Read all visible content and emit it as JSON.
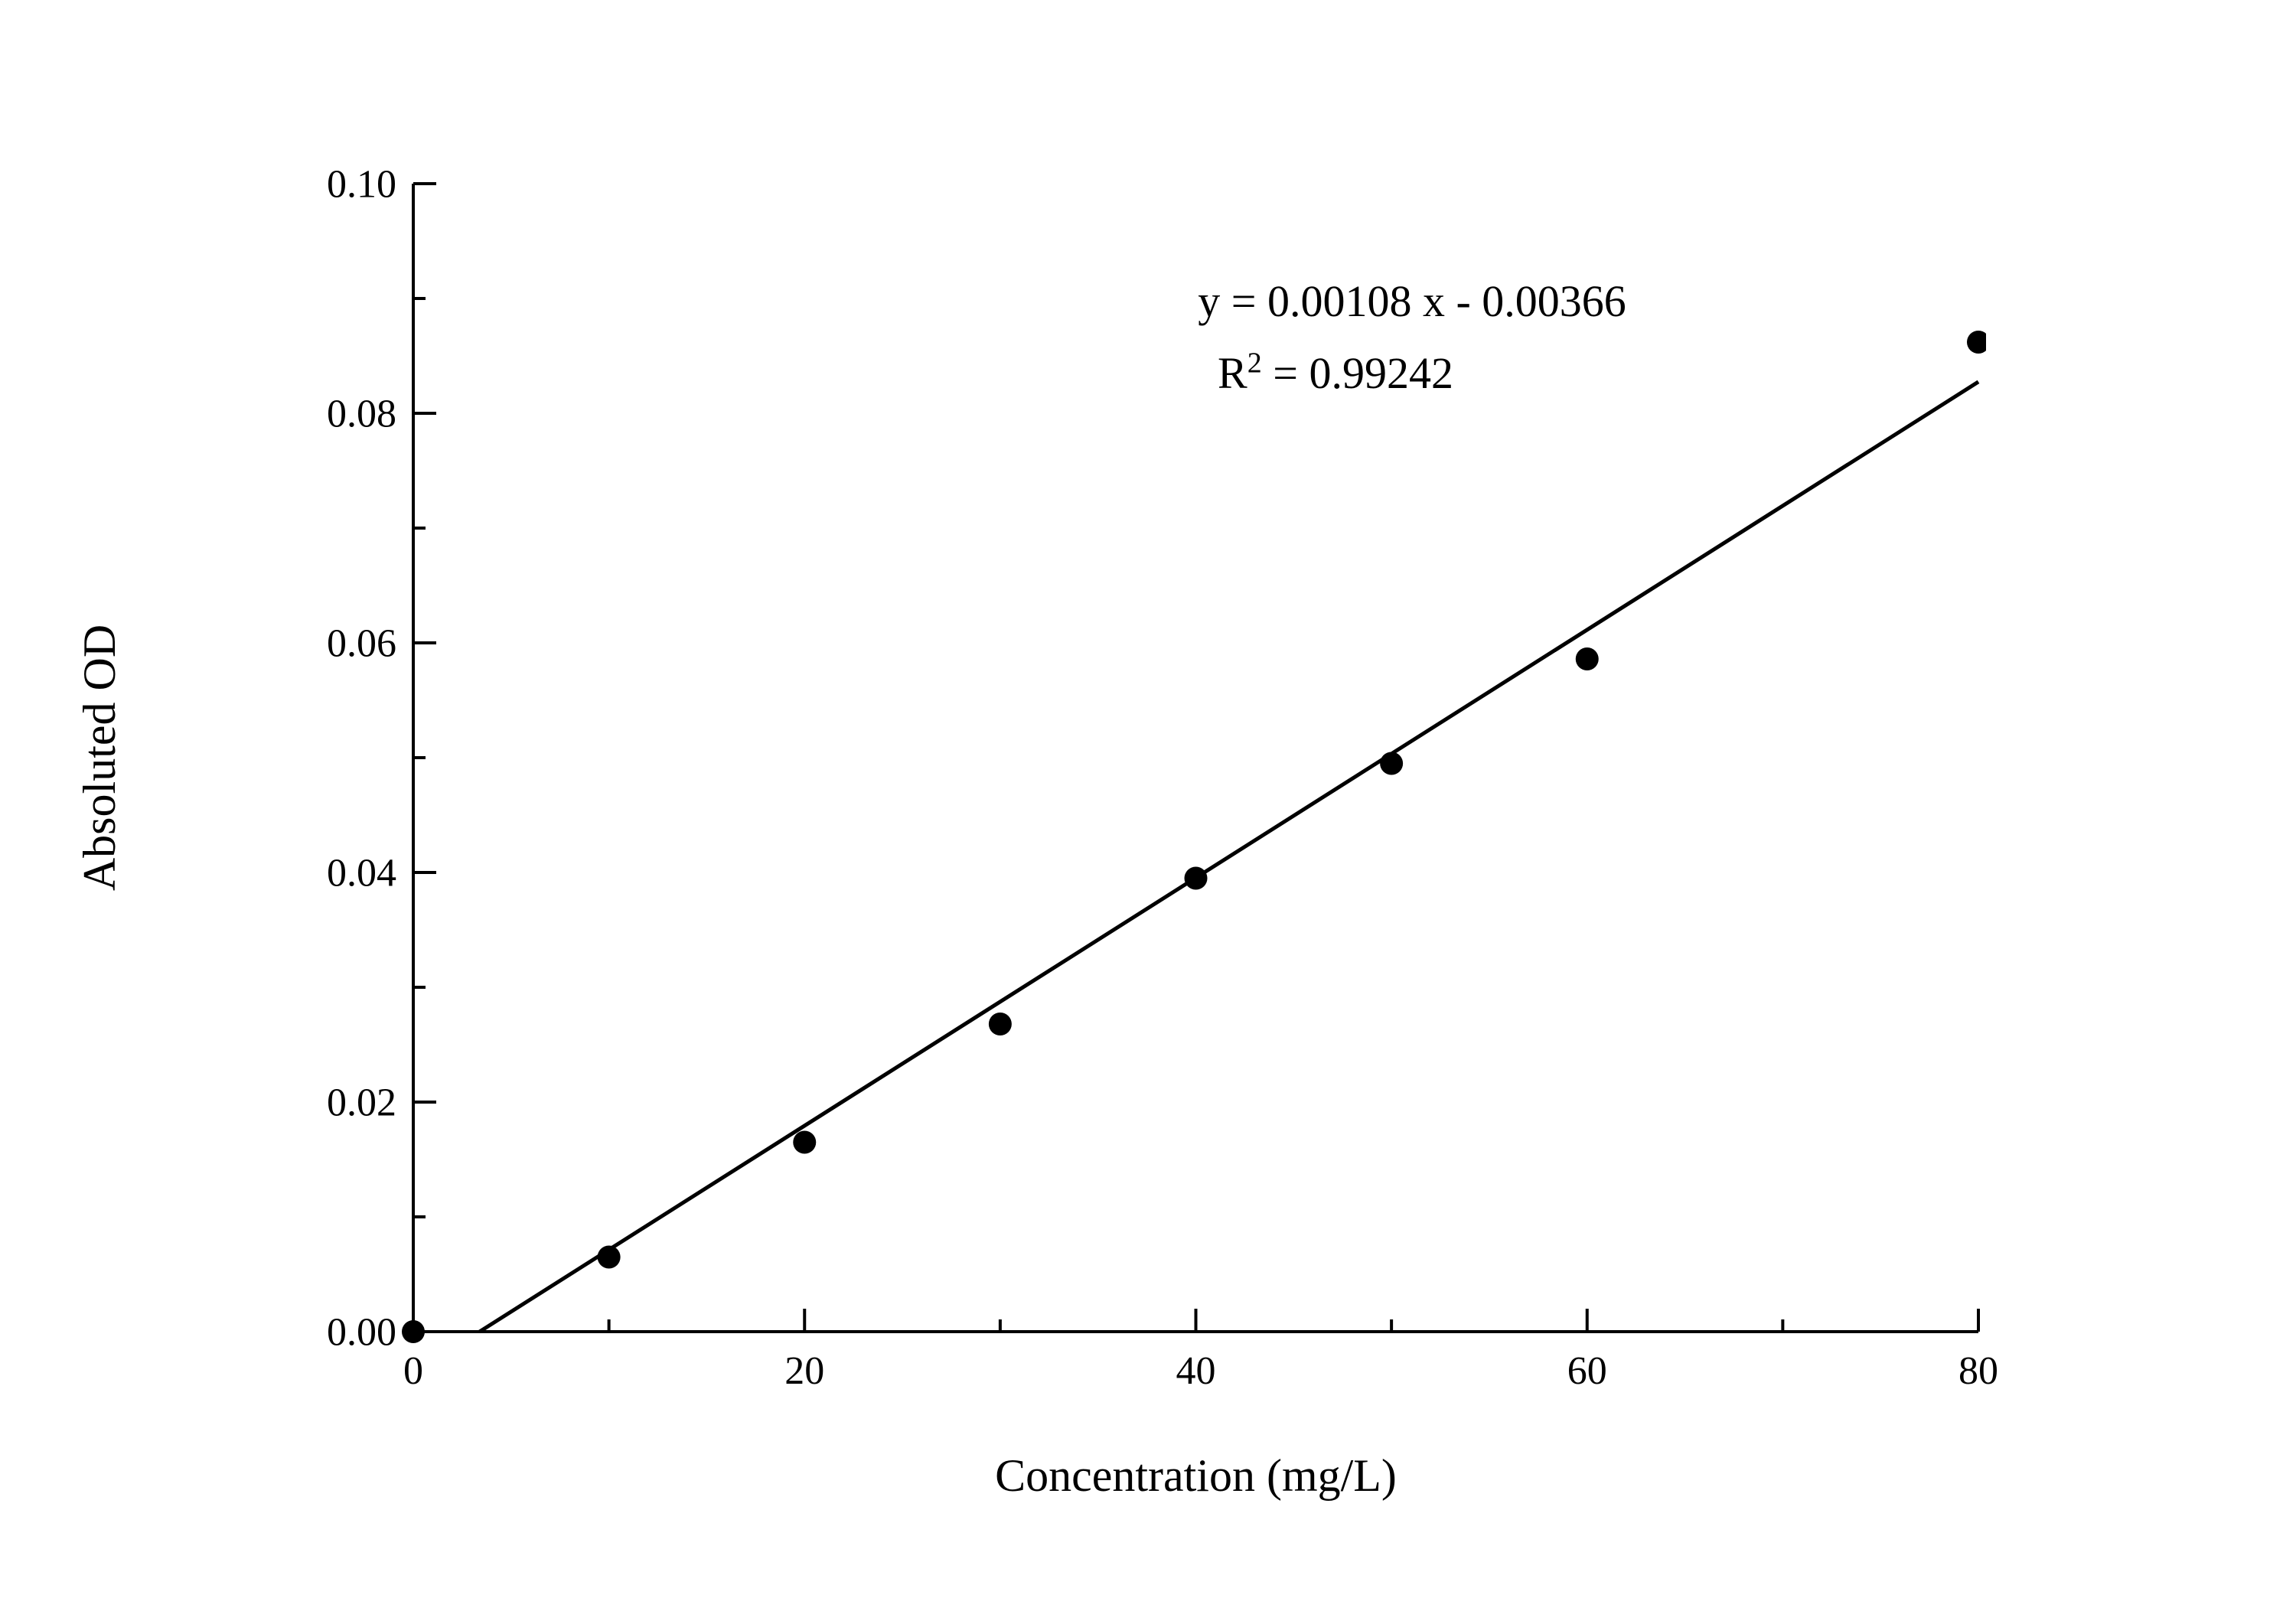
{
  "page": {
    "background": "#ffffff"
  },
  "chart_data": {
    "type": "scatter",
    "title": "",
    "xlabel": "Concentration (mg/L)",
    "ylabel": "Absoluted OD",
    "xlim": [
      0,
      80
    ],
    "ylim": [
      0,
      0.1
    ],
    "x_major_ticks": [
      0,
      20,
      40,
      60,
      80
    ],
    "x_minor_ticks": [
      10,
      30,
      50,
      70
    ],
    "x_tick_labels": [
      "0",
      "20",
      "40",
      "60",
      "80"
    ],
    "y_major_ticks": [
      0.0,
      0.02,
      0.04,
      0.06,
      0.08,
      0.1
    ],
    "y_minor_ticks": [
      0.01,
      0.03,
      0.05,
      0.07,
      0.09
    ],
    "y_tick_labels": [
      "0.00",
      "0.02",
      "0.04",
      "0.06",
      "0.08",
      "0.10"
    ],
    "grid": false,
    "legend": "none",
    "points": [
      {
        "x": 0,
        "y": 0.0
      },
      {
        "x": 10,
        "y": 0.0065
      },
      {
        "x": 20,
        "y": 0.0165
      },
      {
        "x": 30,
        "y": 0.0268
      },
      {
        "x": 40,
        "y": 0.0395
      },
      {
        "x": 50,
        "y": 0.0495
      },
      {
        "x": 60,
        "y": 0.0586
      },
      {
        "x": 80,
        "y": 0.0862
      }
    ],
    "fit": {
      "slope": 0.00108,
      "intercept": -0.00366,
      "r_squared": 0.99242,
      "x_end": 80
    },
    "annotation": {
      "equation": "y = 0.00108 x - 0.00366",
      "r2_base": "R",
      "r2_sup": "2",
      "r2_rest": " = 0.99242"
    },
    "colors": {
      "points": "#000000",
      "line": "#000000",
      "axis": "#000000",
      "text": "#000000"
    }
  }
}
